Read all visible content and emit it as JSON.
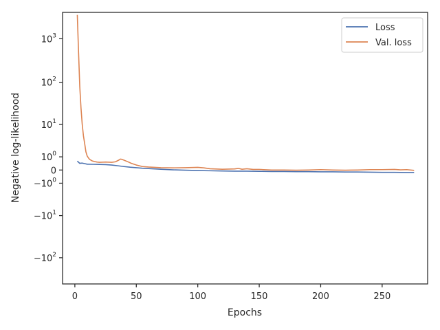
{
  "chart_data": {
    "type": "line",
    "xlabel": "Epochs",
    "ylabel": "Negative log-likelihood",
    "yscale": "symlog",
    "xlim": [
      -10,
      287
    ],
    "ylim": [
      -400,
      4000
    ],
    "x_ticks": [
      {
        "value": 0,
        "label": "0"
      },
      {
        "value": 50,
        "label": "50"
      },
      {
        "value": 100,
        "label": "100"
      },
      {
        "value": 150,
        "label": "150"
      },
      {
        "value": 200,
        "label": "200"
      },
      {
        "value": 250,
        "label": "250"
      }
    ],
    "y_ticks": [
      {
        "value": 1000,
        "base": "10",
        "exp": "3"
      },
      {
        "value": 100,
        "base": "10",
        "exp": "2"
      },
      {
        "value": 10,
        "base": "10",
        "exp": "1"
      },
      {
        "value": 1,
        "base": "10",
        "exp": "0"
      },
      {
        "value": 0,
        "base": "0",
        "exp": ""
      },
      {
        "value": -1,
        "base": "−10",
        "exp": "0"
      },
      {
        "value": -10,
        "base": "−10",
        "exp": "1"
      },
      {
        "value": -100,
        "base": "−10",
        "exp": "2"
      }
    ],
    "grid": false,
    "legend_position": "top-right",
    "series": [
      {
        "name": "Loss",
        "color": "#4c72b0",
        "points": [
          [
            2,
            0.6
          ],
          [
            4,
            0.42
          ],
          [
            6,
            0.44
          ],
          [
            8,
            0.4
          ],
          [
            10,
            0.36
          ],
          [
            15,
            0.35
          ],
          [
            20,
            0.34
          ],
          [
            25,
            0.33
          ],
          [
            30,
            0.3
          ],
          [
            35,
            0.25
          ],
          [
            40,
            0.2
          ],
          [
            45,
            0.16
          ],
          [
            50,
            0.13
          ],
          [
            55,
            0.1
          ],
          [
            60,
            0.08
          ],
          [
            70,
            0.04
          ],
          [
            80,
            0.01
          ],
          [
            90,
            -0.01
          ],
          [
            100,
            -0.03
          ],
          [
            110,
            -0.04
          ],
          [
            120,
            -0.05
          ],
          [
            130,
            -0.06
          ],
          [
            140,
            -0.06
          ],
          [
            150,
            -0.07
          ],
          [
            160,
            -0.08
          ],
          [
            170,
            -0.08
          ],
          [
            180,
            -0.09
          ],
          [
            190,
            -0.09
          ],
          [
            200,
            -0.1
          ],
          [
            210,
            -0.1
          ],
          [
            220,
            -0.11
          ],
          [
            230,
            -0.11
          ],
          [
            240,
            -0.12
          ],
          [
            250,
            -0.13
          ],
          [
            260,
            -0.13
          ],
          [
            270,
            -0.14
          ],
          [
            276,
            -0.14
          ]
        ]
      },
      {
        "name": "Val. loss",
        "color": "#dd8452",
        "points": [
          [
            2,
            3500
          ],
          [
            3,
            500
          ],
          [
            4,
            80
          ],
          [
            5,
            25
          ],
          [
            6,
            10
          ],
          [
            7,
            5
          ],
          [
            8,
            3
          ],
          [
            9,
            1.6
          ],
          [
            10,
            1.1
          ],
          [
            11,
            0.9
          ],
          [
            12,
            0.75
          ],
          [
            14,
            0.62
          ],
          [
            16,
            0.56
          ],
          [
            18,
            0.52
          ],
          [
            20,
            0.5
          ],
          [
            25,
            0.52
          ],
          [
            30,
            0.5
          ],
          [
            33,
            0.54
          ],
          [
            36,
            0.7
          ],
          [
            37,
            0.78
          ],
          [
            38,
            0.76
          ],
          [
            40,
            0.68
          ],
          [
            43,
            0.55
          ],
          [
            46,
            0.42
          ],
          [
            50,
            0.3
          ],
          [
            55,
            0.2
          ],
          [
            60,
            0.17
          ],
          [
            65,
            0.15
          ],
          [
            70,
            0.13
          ],
          [
            80,
            0.12
          ],
          [
            90,
            0.13
          ],
          [
            95,
            0.14
          ],
          [
            100,
            0.15
          ],
          [
            105,
            0.12
          ],
          [
            110,
            0.07
          ],
          [
            120,
            0.04
          ],
          [
            130,
            0.06
          ],
          [
            133,
            0.09
          ],
          [
            136,
            0.04
          ],
          [
            140,
            0.07
          ],
          [
            145,
            0.03
          ],
          [
            150,
            0.03
          ],
          [
            160,
            0.0
          ],
          [
            170,
            0.0
          ],
          [
            180,
            -0.01
          ],
          [
            190,
            0.0
          ],
          [
            200,
            0.02
          ],
          [
            210,
            0.0
          ],
          [
            220,
            -0.01
          ],
          [
            230,
            0.0
          ],
          [
            240,
            0.02
          ],
          [
            250,
            0.02
          ],
          [
            260,
            0.03
          ],
          [
            265,
            0.01
          ],
          [
            270,
            0.02
          ],
          [
            276,
            -0.02
          ]
        ]
      }
    ]
  }
}
